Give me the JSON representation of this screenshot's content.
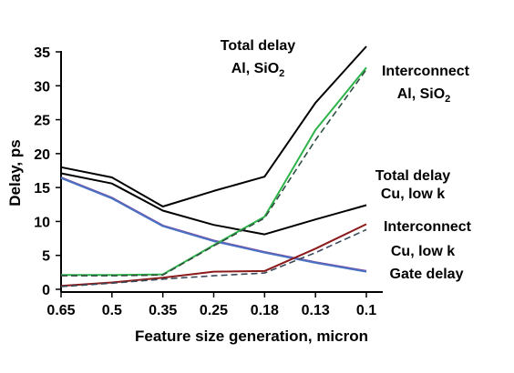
{
  "chart_data": {
    "type": "line",
    "xlabel": "Feature size generation, micron",
    "ylabel": "Delay, ps",
    "categories": [
      "0.65",
      "0.5",
      "0.35",
      "0.25",
      "0.18",
      "0.13",
      "0.1"
    ],
    "ylim": [
      0,
      35
    ],
    "yticks": [
      "0",
      "5",
      "10",
      "15",
      "20",
      "25",
      "30",
      "35"
    ],
    "grid": false,
    "series": [
      {
        "key": "total_al",
        "color": "#000000",
        "dashed": false,
        "values": [
          18,
          16.5,
          12.2,
          14.5,
          16.6,
          27.5,
          35.8
        ]
      },
      {
        "key": "total_cu",
        "color": "#000000",
        "dashed": false,
        "values": [
          17.1,
          15.6,
          11.6,
          9.5,
          8.1,
          10.3,
          12.4
        ]
      },
      {
        "key": "gate_delay",
        "color": "#7b4a9e",
        "dashed": false,
        "values": [
          16.5,
          13.5,
          9.4,
          7.2,
          5.5,
          4.0,
          2.7
        ]
      },
      {
        "key": "gate_delay_b",
        "color": "#4a72c4",
        "dashed": false,
        "values": [
          16.4,
          13.4,
          9.3,
          7.1,
          5.4,
          3.9,
          2.6
        ]
      },
      {
        "key": "interconnect_al",
        "color": "#2db34a",
        "dashed": false,
        "values": [
          2.1,
          2.1,
          2.2,
          6.5,
          10.7,
          23.5,
          32.7
        ]
      },
      {
        "key": "interconnect_al_b",
        "color": "#2f4f3f",
        "dashed": true,
        "values": [
          2.0,
          2.0,
          2.1,
          6.4,
          10.5,
          22.0,
          32.4
        ]
      },
      {
        "key": "interconnect_cu",
        "color": "#8b1a1a",
        "dashed": false,
        "values": [
          0.5,
          1.0,
          1.7,
          2.6,
          2.7,
          6.0,
          9.6
        ]
      },
      {
        "key": "interconnect_cu_b",
        "color": "#3a4a5a",
        "dashed": true,
        "values": [
          0.4,
          0.9,
          1.5,
          2.0,
          2.4,
          5.4,
          8.8
        ]
      }
    ],
    "annotations": {
      "total_al_line1": "Total delay",
      "total_al_line2_prefix": "Al, SiO",
      "total_al_line2_sub": "2",
      "interconnect_al_line1": "Interconnect",
      "interconnect_al_line2_prefix": "Al, SiO",
      "interconnect_al_line2_sub": "2",
      "total_cu_line1": "Total delay",
      "total_cu_line2": "Cu, low k",
      "interconnect_cu_line1": "Interconnect",
      "interconnect_cu_line2": "Cu, low k",
      "gate_delay": "Gate delay"
    }
  }
}
